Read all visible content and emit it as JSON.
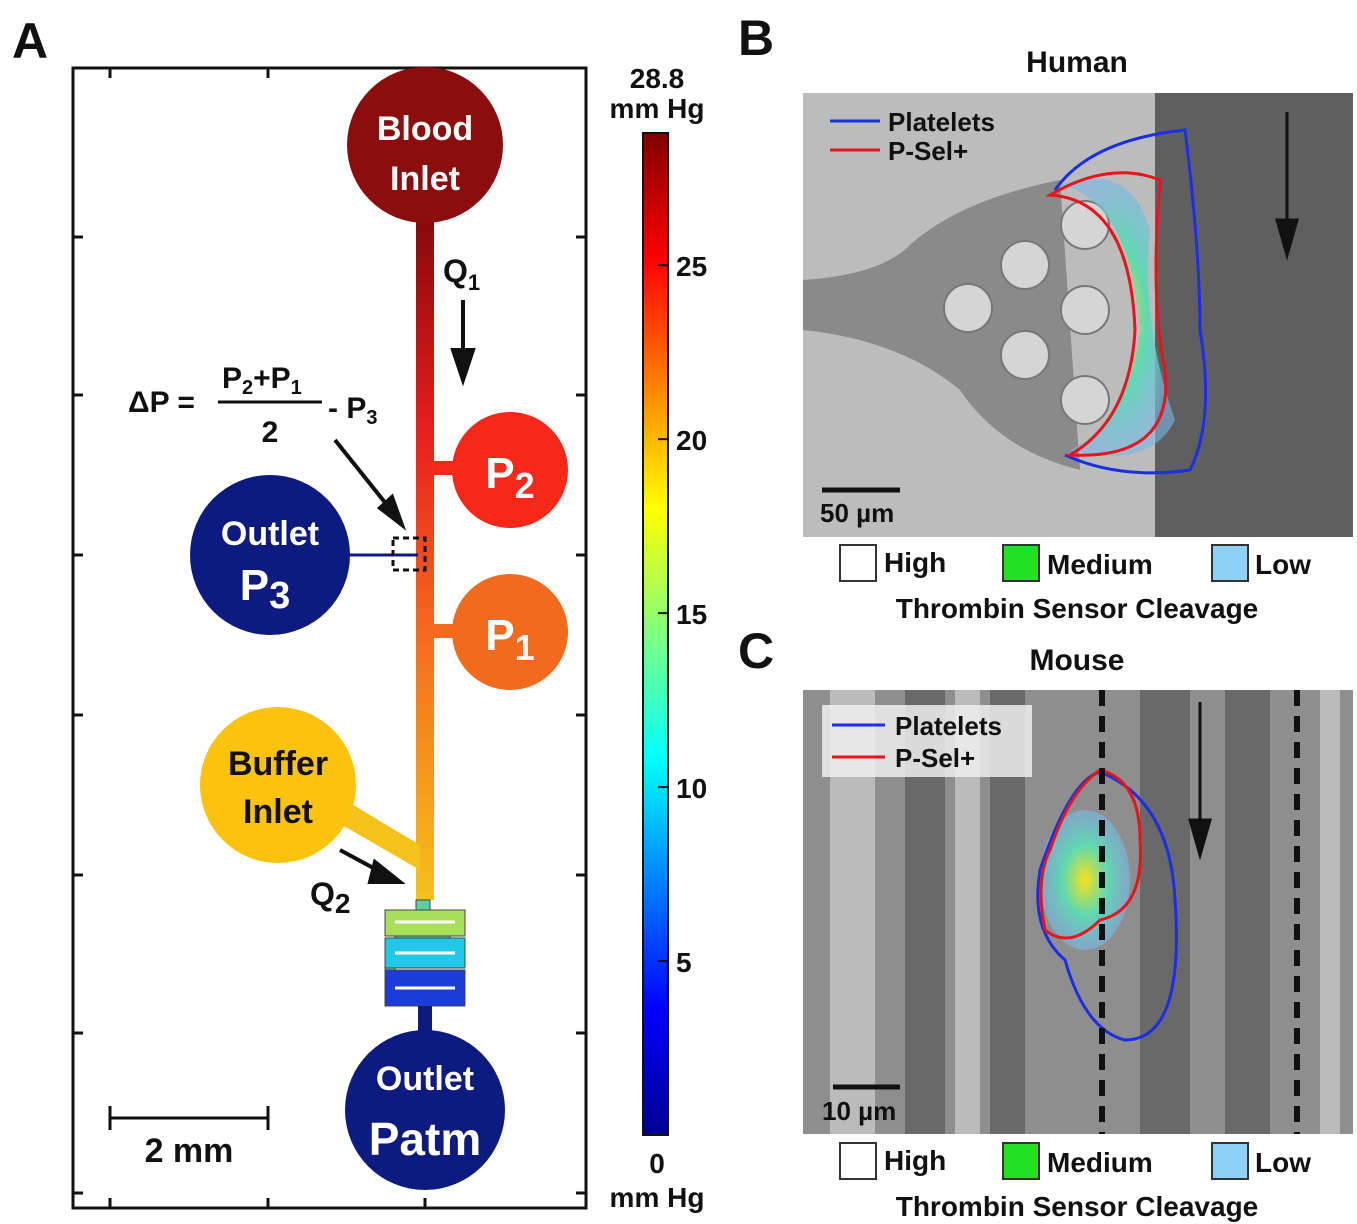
{
  "panel_a": {
    "label": "A",
    "nodes": {
      "blood_inlet": [
        "Blood",
        "Inlet"
      ],
      "p2": {
        "text": "P",
        "sub": "2"
      },
      "p1": {
        "text": "P",
        "sub": "1"
      },
      "outlet_p3": {
        "line1": "Outlet",
        "text": "P",
        "sub": "3"
      },
      "buffer_inlet": [
        "Buffer",
        "Inlet"
      ],
      "outlet_patm": [
        "Outlet",
        "Patm"
      ]
    },
    "flows": {
      "q1": {
        "text": "Q",
        "sub": "1"
      },
      "q2": {
        "text": "Q",
        "sub": "2"
      }
    },
    "equation": {
      "lhs": "ΔP =",
      "numerator": [
        "P",
        "2",
        "+P",
        "1"
      ],
      "denominator": "2",
      "minus": "- P",
      "minus_sub": "3"
    },
    "scale_bar": "2 mm",
    "colorbar": {
      "lim": [
        0,
        28.8
      ],
      "ticks": [
        0,
        5,
        10,
        15,
        20,
        25,
        28.8
      ],
      "unit": "mm Hg"
    }
  },
  "panel_b": {
    "label": "B",
    "title": "Human",
    "legend": [
      "Platelets",
      "P-Sel+"
    ],
    "scale_bar": "50 µm"
  },
  "panel_c": {
    "label": "C",
    "title": "Mouse",
    "legend": [
      "Platelets",
      "P-Sel+"
    ],
    "scale_bar": "10 µm"
  },
  "cleavage_legend": {
    "levels": [
      "High",
      "Medium",
      "Low"
    ],
    "title": "Thrombin Sensor Cleavage"
  }
}
